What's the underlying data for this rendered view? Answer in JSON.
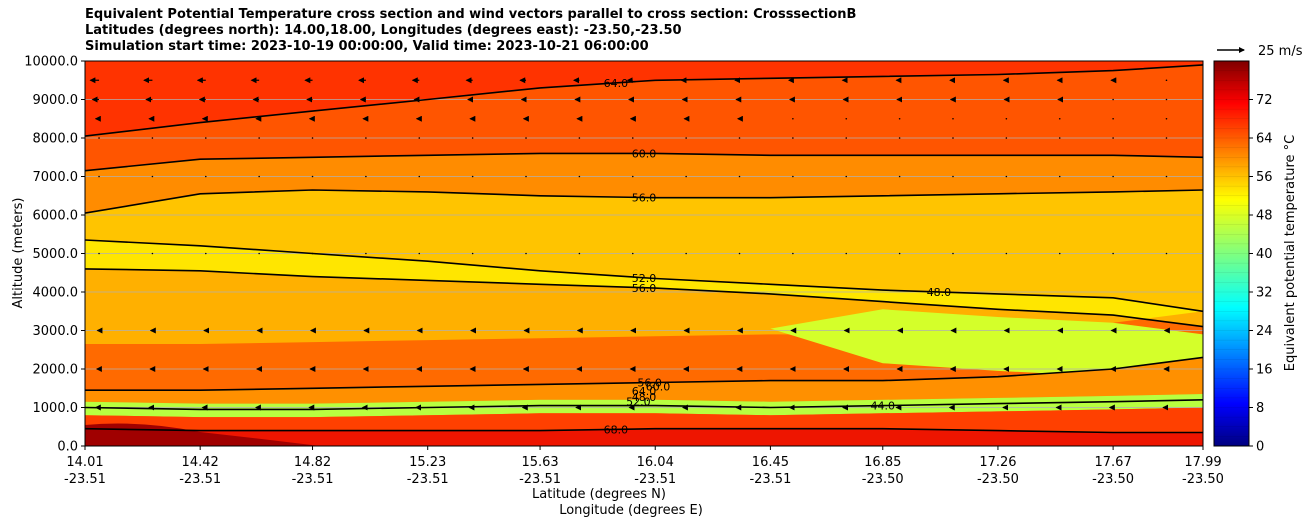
{
  "title_lines": [
    "Equivalent Potential Temperature cross section and wind vectors parallel to cross section: CrosssectionB",
    "Latitudes (degrees north): 14.00,18.00, Longitudes (degrees east): -23.50,-23.50",
    "Simulation start time: 2023-10-19 00:00:00, Valid time: 2023-10-21 06:00:00"
  ],
  "chart_data": {
    "type": "heatmap",
    "subtype": "filled contour cross section with wind vectors",
    "title": "Equivalent Potential Temperature cross section and wind vectors parallel to cross section: CrosssectionB",
    "xlabel": "Latitude (degrees N)",
    "xlabel2": "Longitude (degrees E)",
    "ylabel": "Altitude (meters)",
    "ylim": [
      0,
      10000
    ],
    "yticks": [
      "0.0",
      "1000.0",
      "2000.0",
      "3000.0",
      "4000.0",
      "5000.0",
      "6000.0",
      "7000.0",
      "8000.0",
      "9000.0",
      "10000.0"
    ],
    "xticks_lat": [
      "14.01",
      "14.42",
      "14.82",
      "15.23",
      "15.63",
      "16.04",
      "16.45",
      "16.85",
      "17.26",
      "17.67",
      "17.99"
    ],
    "xticks_lon": [
      "-23.51",
      "-23.51",
      "-23.51",
      "-23.51",
      "-23.51",
      "-23.51",
      "-23.51",
      "-23.50",
      "-23.50",
      "-23.50",
      "-23.50"
    ],
    "xlim": [
      14.01,
      17.99
    ],
    "grid": "horizontal",
    "colorbar": {
      "label": "Equivalent potential temperature °C",
      "range": [
        0,
        80
      ],
      "ticks": [
        "0",
        "8",
        "16",
        "24",
        "32",
        "40",
        "48",
        "56",
        "64",
        "72"
      ],
      "colormap": "jet"
    },
    "quiver_key": "25 m/s",
    "profiles": {
      "x": [
        14.01,
        14.42,
        14.82,
        15.23,
        15.63,
        16.04,
        16.45,
        16.85,
        17.26,
        17.67,
        17.99
      ],
      "contour_levels": [
        {
          "level": 64,
          "altitude": [
            8050,
            8400,
            8700,
            9000,
            9300,
            9500,
            9550,
            9600,
            9650,
            9750,
            9900
          ]
        },
        {
          "level": 60,
          "altitude": [
            7150,
            7450,
            7500,
            7550,
            7600,
            7600,
            7550,
            7550,
            7550,
            7550,
            7500
          ]
        },
        {
          "level": 56,
          "altitude": [
            6050,
            6550,
            6650,
            6600,
            6500,
            6450,
            6450,
            6500,
            6550,
            6600,
            6650
          ]
        },
        {
          "level": 52,
          "altitude": [
            5350,
            5200,
            5000,
            4800,
            4550,
            4350,
            4200,
            4050,
            3950,
            3850,
            3500
          ]
        },
        {
          "level": 48,
          "altitude": [
            4600,
            4550,
            4400,
            4300,
            4200,
            4100,
            3950,
            3750,
            3550,
            3400,
            3100
          ]
        },
        {
          "level": 64,
          "altitude": [
            1450,
            1450,
            1500,
            1550,
            1600,
            1650,
            1700,
            1700,
            1800,
            2000,
            2300
          ]
        },
        {
          "level": 44,
          "altitude": [
            1000,
            950,
            950,
            1000,
            1050,
            1050,
            1000,
            1050,
            1100,
            1150,
            1200
          ]
        },
        {
          "level": 68,
          "altitude": [
            450,
            400,
            400,
            400,
            400,
            450,
            450,
            450,
            400,
            350,
            350
          ]
        }
      ],
      "contour_labels": [
        "64.0",
        "60.0",
        "56.0",
        "52.0",
        "56.0",
        "48.0",
        "64.0",
        "60.0",
        "56.0",
        "52.0",
        "48.0",
        "44.0",
        "68.0"
      ],
      "wind_u_m_per_s": {
        "altitude": [
          9500,
          9000,
          8500,
          8000,
          7000,
          5000,
          3000,
          2000,
          1000
        ],
        "values": [
          -8,
          -6,
          -3,
          -1,
          0.5,
          0.5,
          -1.5,
          -2,
          -3
        ]
      }
    }
  }
}
